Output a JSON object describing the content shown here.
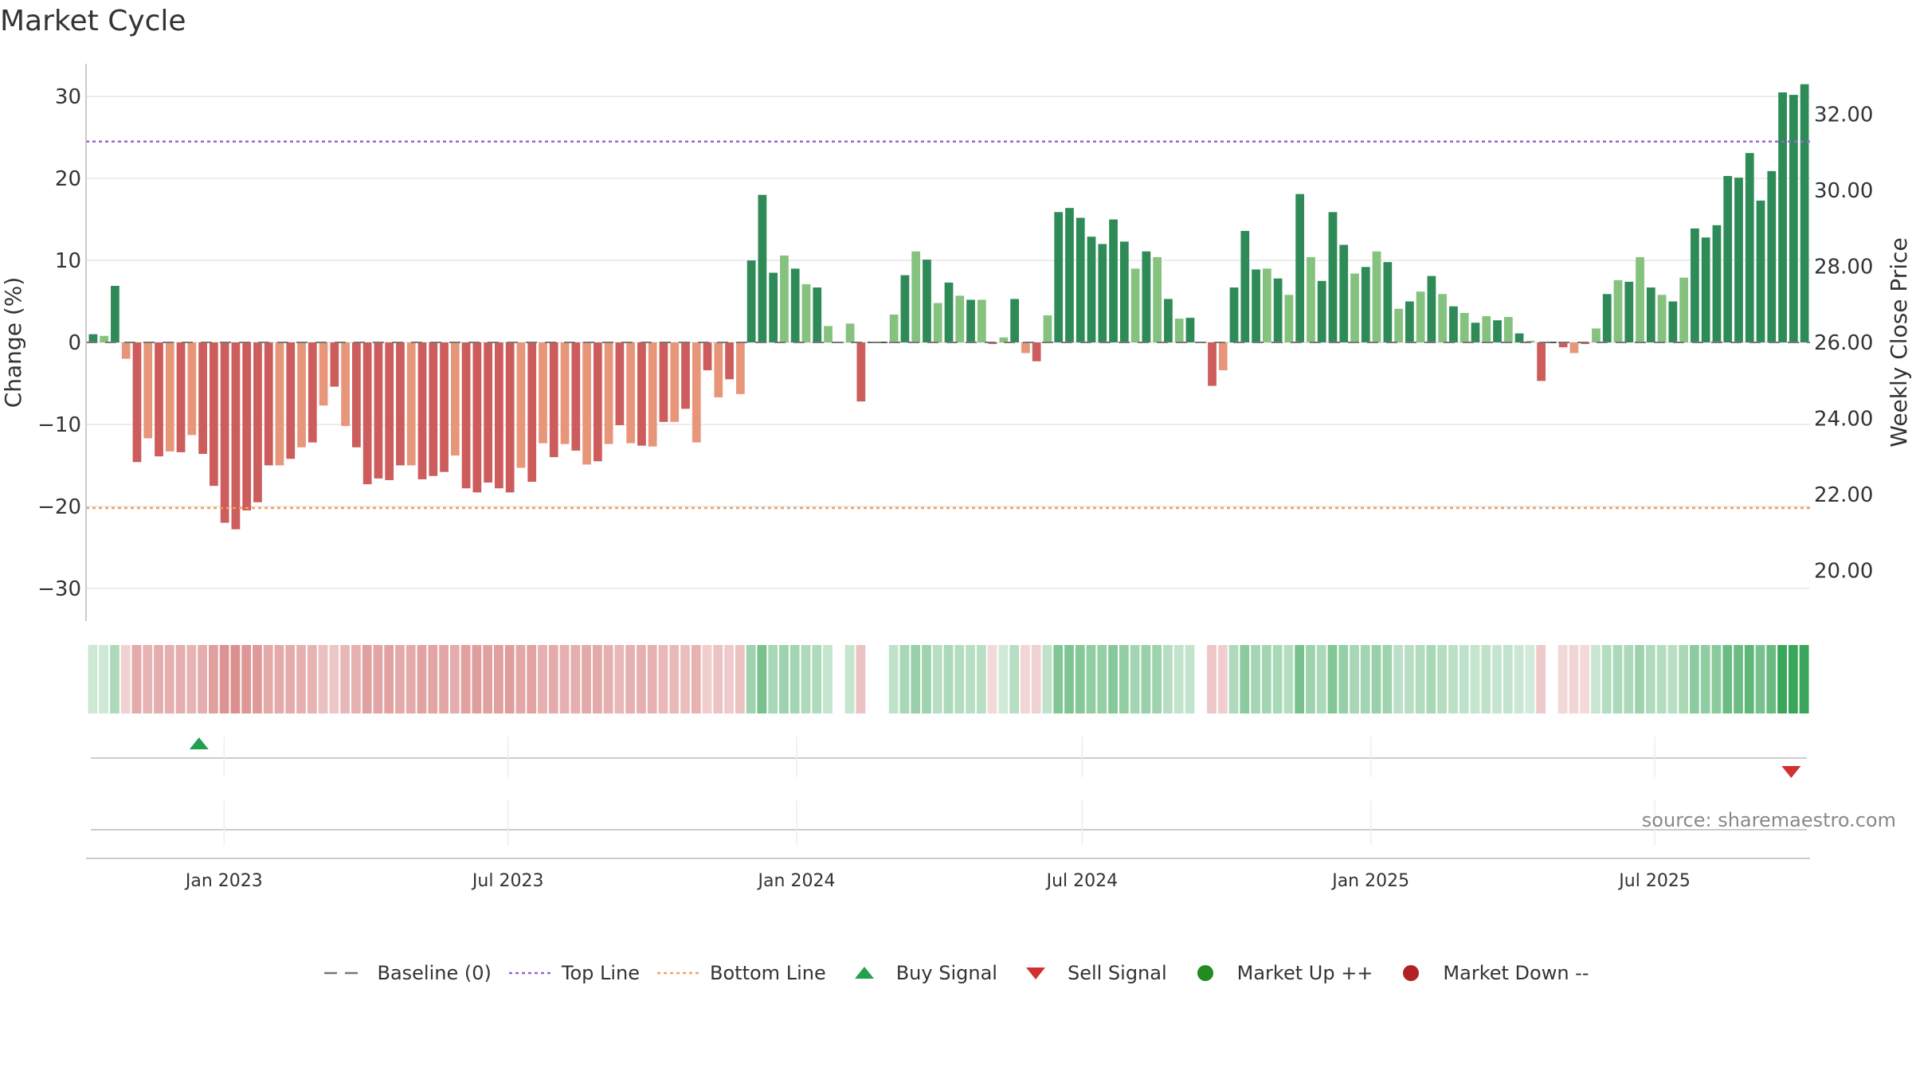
{
  "title": "Market Cycle",
  "source": "source: sharemaestro.com",
  "legend": [
    {
      "label": "Baseline (0)",
      "symbol": "dash",
      "color": "#777777"
    },
    {
      "label": "Top Line",
      "symbol": "dot",
      "color": "#9966cc"
    },
    {
      "label": "Bottom Line",
      "symbol": "dot",
      "color": "#f0a060"
    },
    {
      "label": "Buy Signal",
      "symbol": "triangle-up",
      "color": "#22a050"
    },
    {
      "label": "Sell Signal",
      "symbol": "triangle-down",
      "color": "#d03030"
    },
    {
      "label": "Market Up ++",
      "symbol": "circle",
      "color": "#228b22"
    },
    {
      "label": "Market Down --",
      "symbol": "circle",
      "color": "#b22222"
    }
  ],
  "chart_data": {
    "type": "bar",
    "ylabel": "Change (%)",
    "y2label": "Weekly Close Price",
    "ylim": [
      -34,
      34
    ],
    "yticks": [
      30,
      20,
      10,
      0,
      -10,
      -20,
      -30
    ],
    "y2lim": [
      18.67,
      33.33
    ],
    "y2ticks": [
      "20.00",
      "22.00",
      "24.00",
      "26.00",
      "28.00",
      "30.00",
      "32.00"
    ],
    "top_line": 24.5,
    "bottom_line": -20.2,
    "baseline": 0,
    "xlim": [
      "2022-10-06",
      "2025-10-08"
    ],
    "xticks": [
      {
        "date": "2023-01-01",
        "label": "Jan 2023"
      },
      {
        "date": "2023-07-01",
        "label": "Jul 2023"
      },
      {
        "date": "2024-01-01",
        "label": "Jan 2024"
      },
      {
        "date": "2024-07-01",
        "label": "Jul 2024"
      },
      {
        "date": "2025-01-01",
        "label": "Jan 2025"
      },
      {
        "date": "2025-07-01",
        "label": "Jul 2025"
      }
    ],
    "grid": true,
    "values": [
      1.0,
      0.8,
      6.9,
      -2.0,
      -14.6,
      -11.7,
      -13.9,
      -13.3,
      -13.4,
      -11.3,
      -13.6,
      -17.5,
      -22.0,
      -22.8,
      -20.5,
      -19.5,
      -15.0,
      -15.0,
      -14.2,
      -12.8,
      -12.2,
      -7.7,
      -5.4,
      -10.2,
      -12.8,
      -17.3,
      -16.6,
      -16.8,
      -15.0,
      -15.0,
      -16.7,
      -16.3,
      -15.8,
      -13.8,
      -17.8,
      -18.3,
      -17.1,
      -17.8,
      -18.3,
      -15.3,
      -17.0,
      -12.3,
      -14.0,
      -12.4,
      -13.2,
      -14.9,
      -14.5,
      -12.4,
      -10.1,
      -12.3,
      -12.6,
      -12.7,
      -9.7,
      -9.7,
      -8.1,
      -12.2,
      -3.4,
      -6.7,
      -4.5,
      -6.3,
      10.0,
      18.0,
      8.5,
      10.6,
      9.0,
      7.1,
      6.7,
      2.0,
      0.0,
      2.3,
      -7.2,
      0.0,
      0.0,
      3.4,
      8.2,
      11.1,
      10.1,
      4.8,
      7.3,
      5.7,
      5.2,
      5.2,
      -0.2,
      0.6,
      5.3,
      -1.3,
      -2.3,
      3.3,
      15.9,
      16.4,
      15.2,
      12.9,
      12.0,
      15.0,
      12.3,
      9.0,
      11.1,
      10.4,
      5.3,
      2.9,
      3.0,
      0.0,
      -5.3,
      -3.4,
      6.7,
      13.6,
      8.9,
      9.0,
      7.8,
      5.8,
      18.1,
      10.4,
      7.5,
      15.9,
      11.9,
      8.4,
      9.2,
      11.1,
      9.8,
      4.1,
      5.0,
      6.2,
      8.1,
      5.9,
      4.4,
      3.6,
      2.4,
      3.2,
      2.7,
      3.1,
      1.1,
      0.2,
      -4.7,
      0.0,
      -0.6,
      -1.3,
      -0.2,
      1.7,
      5.9,
      7.6,
      7.4,
      10.4,
      6.7,
      5.8,
      5.0,
      7.9,
      13.9,
      12.8,
      14.3,
      20.3,
      20.1,
      23.1,
      17.3,
      20.9,
      30.5,
      30.2,
      31.5
    ],
    "signals": [
      {
        "type": "buy",
        "date": "2022-12-16"
      },
      {
        "type": "sell",
        "date": "2025-09-26"
      }
    ]
  }
}
